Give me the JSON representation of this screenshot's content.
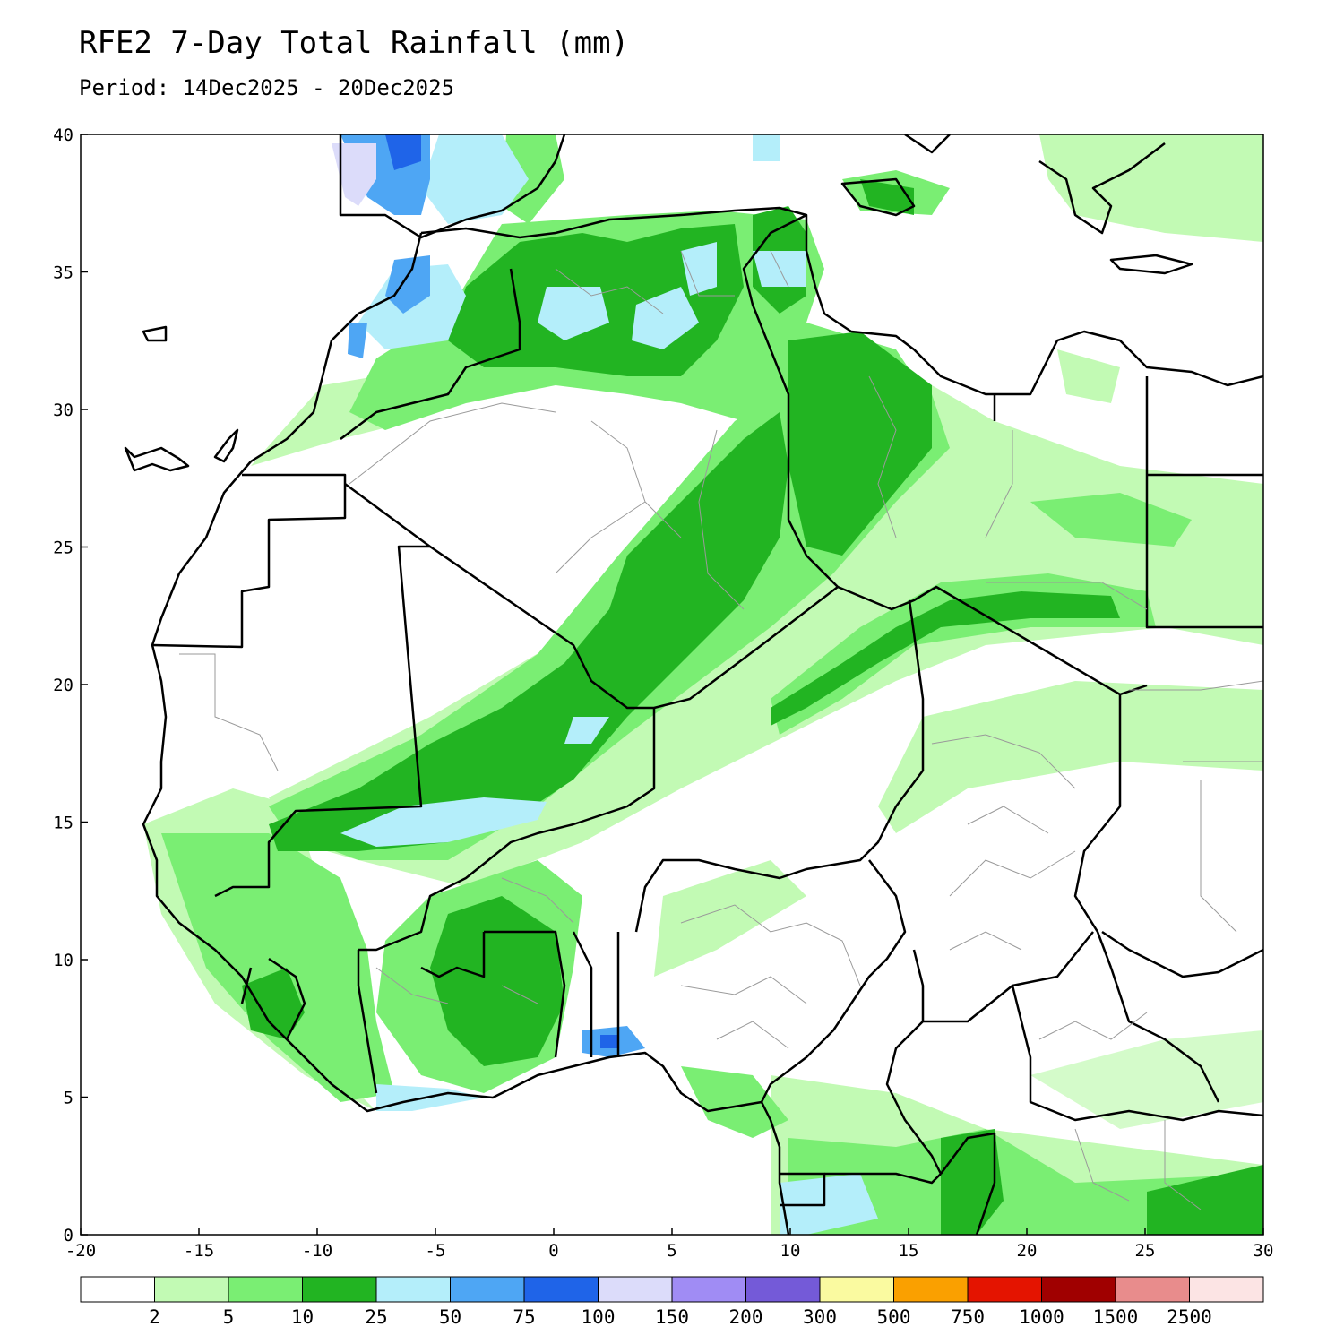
{
  "title": "RFE2 7-Day Total Rainfall (mm)",
  "subtitle": "Period: 14Dec2025 - 20Dec2025",
  "chart_data": {
    "type": "heatmap",
    "x_range": [
      -20,
      30
    ],
    "y_range": [
      0,
      40
    ],
    "x_ticks": [
      -20,
      -15,
      -10,
      -5,
      0,
      5,
      10,
      15,
      20,
      25,
      30
    ],
    "x_tick_labels": [
      "-20",
      "-15",
      "-10",
      "-5",
      "0",
      "5",
      "10",
      "15",
      "20",
      "25",
      "30"
    ],
    "y_ticks": [
      0,
      5,
      10,
      15,
      20,
      25,
      30,
      35,
      40
    ],
    "y_tick_labels": [
      "0",
      "5",
      "10",
      "15",
      "20",
      "25",
      "30",
      "35",
      "40"
    ],
    "legend": {
      "placement": "bottom",
      "bins": [
        {
          "color": "#ffffff",
          "label": ""
        },
        {
          "color": "#c2fab4",
          "label": "2"
        },
        {
          "color": "#7aee73",
          "label": "5"
        },
        {
          "color": "#22b422",
          "label": "10"
        },
        {
          "color": "#b4eefa",
          "label": "25"
        },
        {
          "color": "#4ea6f4",
          "label": "50"
        },
        {
          "color": "#1f64e8",
          "label": "75"
        },
        {
          "color": "#dcdcfa",
          "label": "100"
        },
        {
          "color": "#a08cf4",
          "label": "150"
        },
        {
          "color": "#745ad8",
          "label": "200"
        },
        {
          "color": "#fafaa0",
          "label": "300"
        },
        {
          "color": "#faa000",
          "label": "500"
        },
        {
          "color": "#e41400",
          "label": "750"
        },
        {
          "color": "#a00000",
          "label": "1000"
        },
        {
          "color": "#e88c8c",
          "label": "1500"
        },
        {
          "color": "#fce4e4",
          "label": "2500"
        }
      ]
    }
  }
}
